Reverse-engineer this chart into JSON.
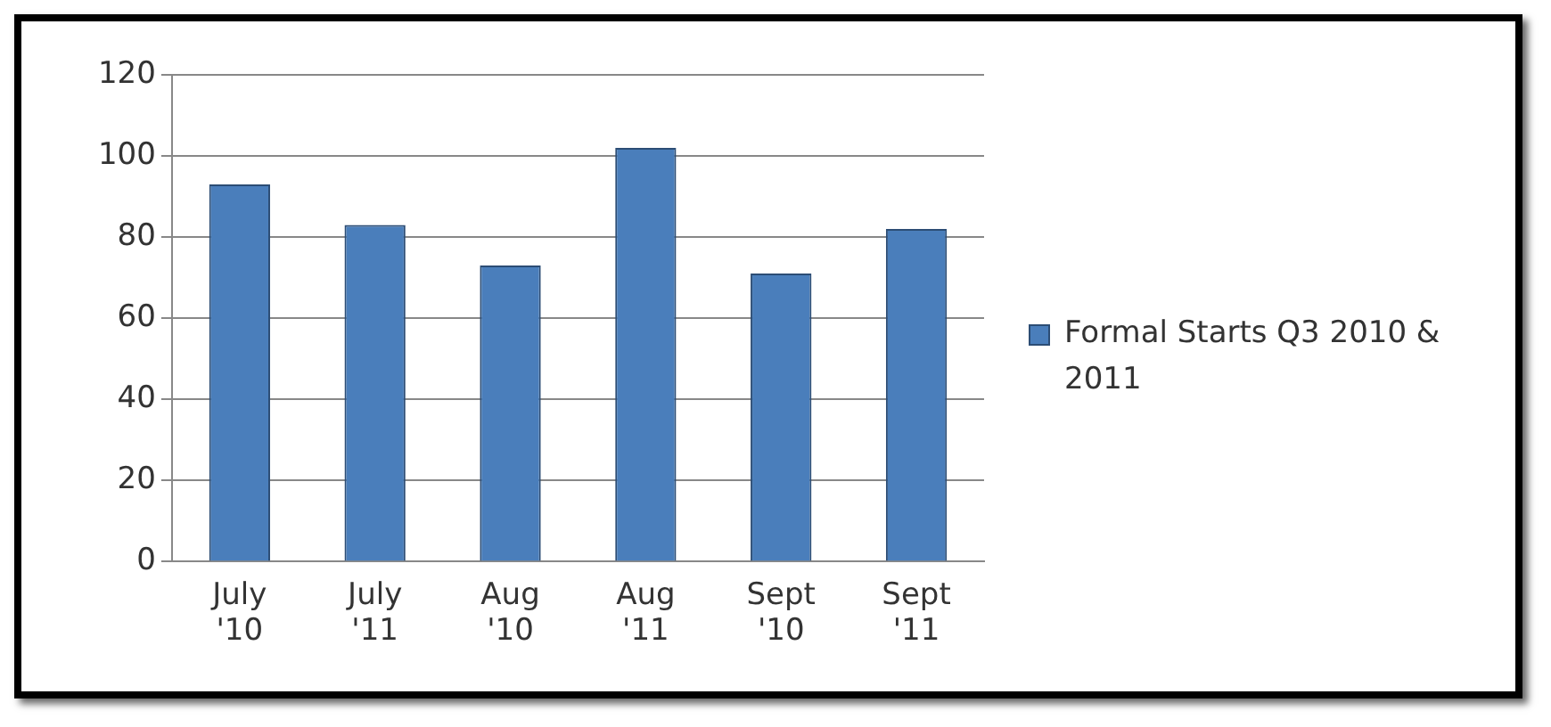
{
  "chart_data": {
    "type": "bar",
    "categories": [
      "July '10",
      "July '11",
      "Aug '10",
      "Aug '11",
      "Sept '10",
      "Sept '11"
    ],
    "series": [
      {
        "name": "Formal Starts Q3 2010 & 2011",
        "color": "#4a7ebb",
        "values": [
          93,
          83,
          73,
          102,
          71,
          82
        ]
      }
    ],
    "ylim": [
      0,
      120
    ],
    "yticks": [
      0,
      20,
      40,
      60,
      80,
      100,
      120
    ],
    "grid": "y",
    "legend": "right"
  }
}
